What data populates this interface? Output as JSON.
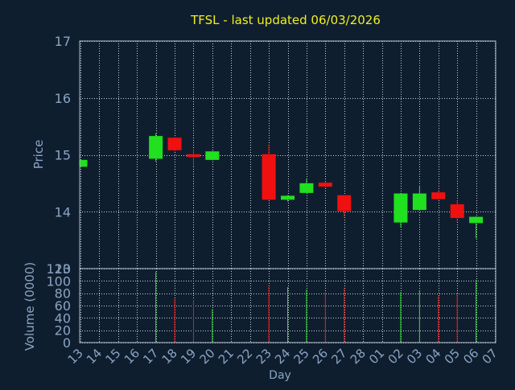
{
  "colors": {
    "background": "#0f1e2e",
    "frame": "#b0bccc",
    "grid": "#c8d0dc",
    "title": "#f0f020",
    "label": "#8aa4c4",
    "up": "#20e020",
    "down": "#f01010"
  },
  "chart_data": [
    {
      "type": "candlestick",
      "title": "TFSL - last updated 06/03/2026",
      "ylabel": "Price",
      "ylim": [
        13,
        17
      ],
      "yticks": [
        "13",
        "14",
        "15",
        "16",
        "17"
      ],
      "grid": true,
      "x": [
        "13",
        "14",
        "15",
        "16",
        "17",
        "18",
        "19",
        "20",
        "21",
        "22",
        "23",
        "24",
        "25",
        "26",
        "27",
        "28",
        "01",
        "02",
        "03",
        "04",
        "05",
        "06",
        "07"
      ],
      "candles": [
        {
          "day": "13",
          "open": 14.79,
          "close": 14.91,
          "high": 14.91,
          "low": 14.79
        },
        {
          "day": "17",
          "open": 14.93,
          "close": 15.33,
          "high": 15.38,
          "low": 14.88
        },
        {
          "day": "18",
          "open": 15.3,
          "close": 15.08,
          "high": 15.31,
          "low": 15.06
        },
        {
          "day": "19",
          "open": 15.01,
          "close": 14.96,
          "high": 15.1,
          "low": 14.8
        },
        {
          "day": "20",
          "open": 14.91,
          "close": 15.06,
          "high": 15.07,
          "low": 14.9
        },
        {
          "day": "23",
          "open": 15.01,
          "close": 14.21,
          "high": 15.18,
          "low": 14.2
        },
        {
          "day": "24",
          "open": 14.21,
          "close": 14.28,
          "high": 14.29,
          "low": 14.18
        },
        {
          "day": "25",
          "open": 14.33,
          "close": 14.5,
          "high": 14.58,
          "low": 14.33
        },
        {
          "day": "26",
          "open": 14.51,
          "close": 14.44,
          "high": 14.53,
          "low": 14.42
        },
        {
          "day": "27",
          "open": 14.29,
          "close": 14.01,
          "high": 14.29,
          "low": 13.91
        },
        {
          "day": "02",
          "open": 13.81,
          "close": 14.32,
          "high": 14.33,
          "low": 13.72
        },
        {
          "day": "03",
          "open": 14.03,
          "close": 14.32,
          "high": 14.44,
          "low": 14.02
        },
        {
          "day": "04",
          "open": 14.34,
          "close": 14.22,
          "high": 14.37,
          "low": 14.2
        },
        {
          "day": "05",
          "open": 14.13,
          "close": 13.89,
          "high": 14.2,
          "low": 13.83
        },
        {
          "day": "06",
          "open": 13.8,
          "close": 13.91,
          "high": 13.92,
          "low": 13.53
        }
      ]
    },
    {
      "type": "bar",
      "ylabel": "Volume (0000)",
      "xlabel": "Day",
      "ylim": [
        0,
        120
      ],
      "yticks": [
        "0",
        "20",
        "40",
        "60",
        "80",
        "100",
        "120"
      ],
      "grid": true,
      "x": [
        "13",
        "14",
        "15",
        "16",
        "17",
        "18",
        "19",
        "20",
        "21",
        "22",
        "23",
        "24",
        "25",
        "26",
        "27",
        "28",
        "01",
        "02",
        "03",
        "04",
        "05",
        "06",
        "07"
      ],
      "volumes": [
        {
          "day": "17",
          "value": 115,
          "direction": "up"
        },
        {
          "day": "18",
          "value": 71,
          "direction": "down"
        },
        {
          "day": "19",
          "value": 69,
          "direction": "down"
        },
        {
          "day": "20",
          "value": 54,
          "direction": "up"
        },
        {
          "day": "23",
          "value": 93,
          "direction": "down"
        },
        {
          "day": "24",
          "value": 90,
          "direction": "up"
        },
        {
          "day": "25",
          "value": 86,
          "direction": "up"
        },
        {
          "day": "26",
          "value": 82,
          "direction": "down"
        },
        {
          "day": "27",
          "value": 88,
          "direction": "down"
        },
        {
          "day": "02",
          "value": 82,
          "direction": "up"
        },
        {
          "day": "03",
          "value": 85,
          "direction": "up"
        },
        {
          "day": "04",
          "value": 76,
          "direction": "down"
        },
        {
          "day": "05",
          "value": 78,
          "direction": "down"
        },
        {
          "day": "06",
          "value": 102,
          "direction": "up"
        }
      ]
    }
  ]
}
